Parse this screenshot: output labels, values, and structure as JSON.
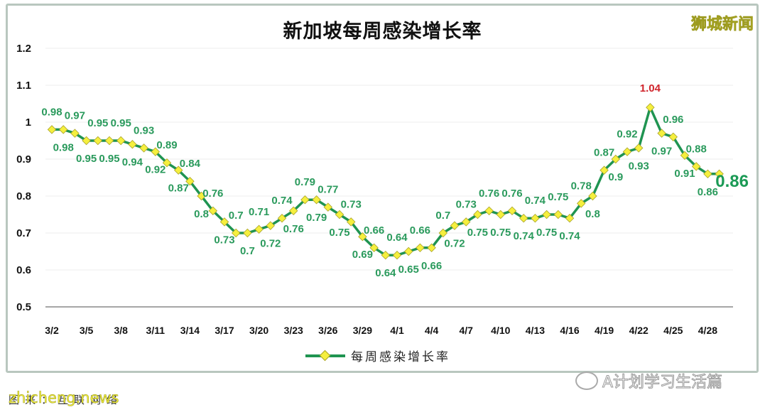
{
  "header": {
    "title": "新加坡每周感染增长率",
    "brand": "狮城新闻"
  },
  "legend": {
    "label": "每周感染增长率"
  },
  "watermarks": {
    "bottom_left": "zhicheng.news",
    "bottom_left_under": "图来：互联网络",
    "bottom_right": "A计划学习生活篇"
  },
  "colors": {
    "line": "#1f9451",
    "marker_fill": "#f5ef3e",
    "marker_stroke": "#a8a22a",
    "label": "#2a9a5c",
    "peak_label": "#d0242b"
  },
  "chart_data": {
    "type": "line",
    "title": "新加坡每周感染增长率",
    "xlabel": "",
    "ylabel": "",
    "ylim": [
      0.5,
      1.2
    ],
    "yticks": [
      "1.2",
      "1.1",
      "1",
      "0.9",
      "0.8",
      "0.7",
      "0.6",
      "0.5"
    ],
    "grid": true,
    "legend_position": "bottom",
    "xtick_labels": [
      "3/2",
      "3/5",
      "3/8",
      "3/11",
      "3/14",
      "3/17",
      "3/20",
      "3/23",
      "3/26",
      "3/29",
      "4/1",
      "4/4",
      "4/7",
      "4/10",
      "4/13",
      "4/16",
      "4/19",
      "4/22",
      "4/25",
      "4/28"
    ],
    "series": [
      {
        "name": "每周感染增长率",
        "values": [
          0.98,
          0.98,
          0.97,
          0.95,
          0.95,
          0.95,
          0.95,
          0.94,
          0.93,
          0.92,
          0.89,
          0.87,
          0.84,
          0.8,
          0.76,
          0.73,
          0.7,
          0.7,
          0.71,
          0.72,
          0.74,
          0.76,
          0.79,
          0.79,
          0.77,
          0.75,
          0.73,
          0.69,
          0.66,
          0.64,
          0.64,
          0.65,
          0.66,
          0.66,
          0.7,
          0.72,
          0.73,
          0.75,
          0.76,
          0.75,
          0.76,
          0.74,
          0.74,
          0.75,
          0.75,
          0.74,
          0.78,
          0.8,
          0.87,
          0.9,
          0.92,
          0.93,
          1.04,
          0.97,
          0.96,
          0.91,
          0.88,
          0.86,
          0.86
        ]
      }
    ],
    "annotations": [
      {
        "point_index": 52,
        "text": "1.04",
        "color": "#d0242b"
      },
      {
        "point_index": 58,
        "text": "0.86",
        "emphasis": "large"
      }
    ]
  }
}
